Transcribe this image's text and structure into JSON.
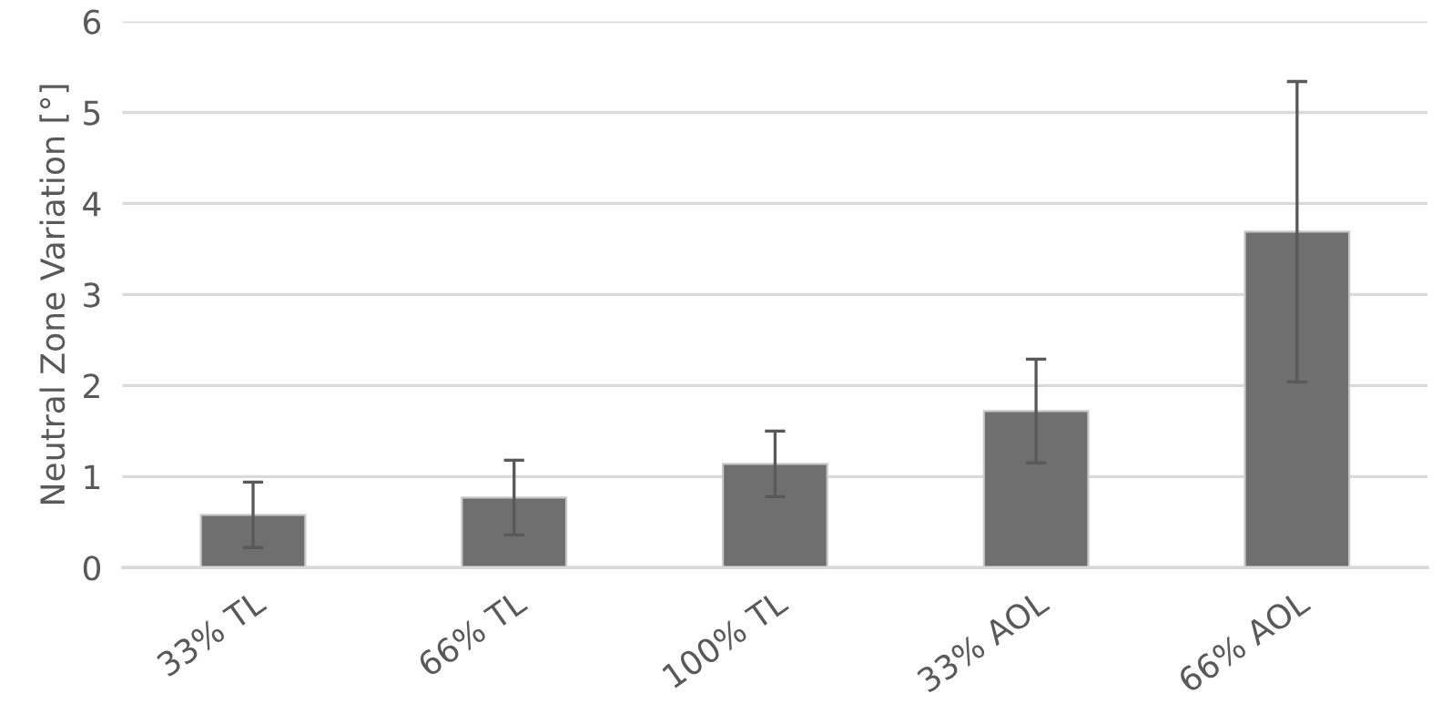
{
  "chart_data": {
    "type": "bar",
    "ylabel": "Neutral Zone Variation [°]",
    "categories": [
      "33% TL",
      "66% TL",
      "100% TL",
      "33% AOL",
      "66% AOL"
    ],
    "values": [
      0.58,
      0.77,
      1.14,
      1.72,
      3.69
    ],
    "errors": [
      0.36,
      0.41,
      0.36,
      0.57,
      1.65
    ],
    "color": "#6f6f6f",
    "ylim": [
      0,
      6
    ],
    "yticks": [
      0,
      1,
      2,
      3,
      4,
      5,
      6
    ],
    "grid": "y"
  }
}
